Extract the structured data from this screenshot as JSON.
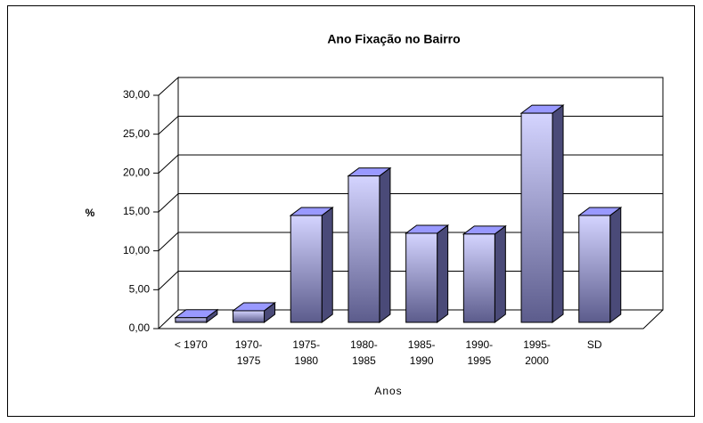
{
  "chart_data": {
    "type": "bar3d",
    "title": "Ano Fixação no Bairro",
    "categories": [
      "< 1970",
      "1970-1975",
      "1975-1980",
      "1980-1985",
      "1985-1990",
      "1990-1995",
      "1995-2000",
      "SD"
    ],
    "values": [
      0.6,
      1.5,
      13.8,
      18.9,
      11.5,
      11.4,
      27.0,
      13.8
    ],
    "color": "#9999ff",
    "xlabel": "Anos",
    "ylabel": "%",
    "ylim": [
      0,
      30
    ],
    "yticks": [
      {
        "value": 0,
        "label": "0,00"
      },
      {
        "value": 5,
        "label": "5,00"
      },
      {
        "value": 10,
        "label": "10,00"
      },
      {
        "value": 15,
        "label": "15,00"
      },
      {
        "value": 20,
        "label": "20,00"
      },
      {
        "value": 25,
        "label": "25,00"
      },
      {
        "value": 30,
        "label": "30,00"
      }
    ],
    "grid": true
  }
}
